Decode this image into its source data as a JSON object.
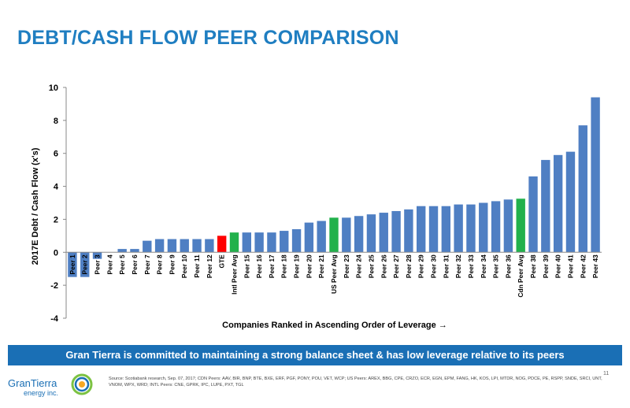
{
  "slide": {
    "title": "DEBT/CASH FLOW PEER COMPARISON",
    "banner": "Gran Tierra is committed to maintaining a strong balance sheet & has low leverage relative to its peers",
    "source": "Source: Scotiabank research, Sep. 07, 2017; CDN Peers: AAV, BIR, BNP, BTE, BXE, ERF, PGF, PONY, POU, VET, WCP; US Peers: AREX, BBG, CPE, CRZO, ECR, EGN, EPM, FANG, HK, KOS, LPI, MTDR, NOG, PDCE, PE, RSPP, SNDE, SRCI, UNT, VNOM, WPX, WRD; INTL Peers: CNE, GPRK, IPC, LUPE, PXT, TGL",
    "page_number": "11",
    "logo": {
      "name": "GranTierra",
      "subtitle": "energy inc.",
      "icon": "gran-tierra-ring-logo"
    }
  },
  "chart_data": {
    "type": "bar",
    "ylabel": "2017E Debt / Cash Flow (x's)",
    "xlabel": "Companies Ranked in Ascending Order of Leverage →",
    "ylim": [
      -4,
      10
    ],
    "yticks": [
      "-4",
      "-2",
      "0",
      "2",
      "4",
      "6",
      "8",
      "10"
    ],
    "grid": false,
    "colors": {
      "default": "#4f7fc3",
      "gte": "#ff0000",
      "avg": "#22b14c"
    },
    "categories": [
      "Peer 1",
      "Peer 2",
      "Peer 3",
      "Peer 4",
      "Peer 5",
      "Peer 6",
      "Peer 7",
      "Peer 8",
      "Peer 9",
      "Peer 10",
      "Peer 11",
      "Peer 12",
      "GTE",
      "Intl Peer Avg",
      "Peer 15",
      "Peer 16",
      "Peer 17",
      "Peer 18",
      "Peer 19",
      "Peer 20",
      "Peer 21",
      "US Peer Avg",
      "Peer 23",
      "Peer 24",
      "Peer 25",
      "Peer 26",
      "Peer 27",
      "Peer 28",
      "Peer 29",
      "Peer 30",
      "Peer 31",
      "Peer 32",
      "Peer 33",
      "Peer 34",
      "Peer 35",
      "Peer 36",
      "Cdn Peer Avg",
      "Peer 38",
      "Peer 39",
      "Peer 40",
      "Peer 41",
      "Peer 42",
      "Peer 43"
    ],
    "values": [
      -1.5,
      -1.5,
      -0.4,
      0,
      0.2,
      0.2,
      0.7,
      0.8,
      0.8,
      0.8,
      0.8,
      0.8,
      1.0,
      1.2,
      1.2,
      1.2,
      1.2,
      1.3,
      1.4,
      1.8,
      1.9,
      2.1,
      2.1,
      2.2,
      2.3,
      2.4,
      2.5,
      2.6,
      2.8,
      2.8,
      2.8,
      2.9,
      2.9,
      3.0,
      3.1,
      3.2,
      3.25,
      4.6,
      5.6,
      5.9,
      6.1,
      7.7,
      9.4
    ],
    "highlight": {
      "GTE": "gte",
      "Intl Peer Avg": "avg",
      "US Peer Avg": "avg",
      "Cdn Peer Avg": "avg"
    }
  }
}
